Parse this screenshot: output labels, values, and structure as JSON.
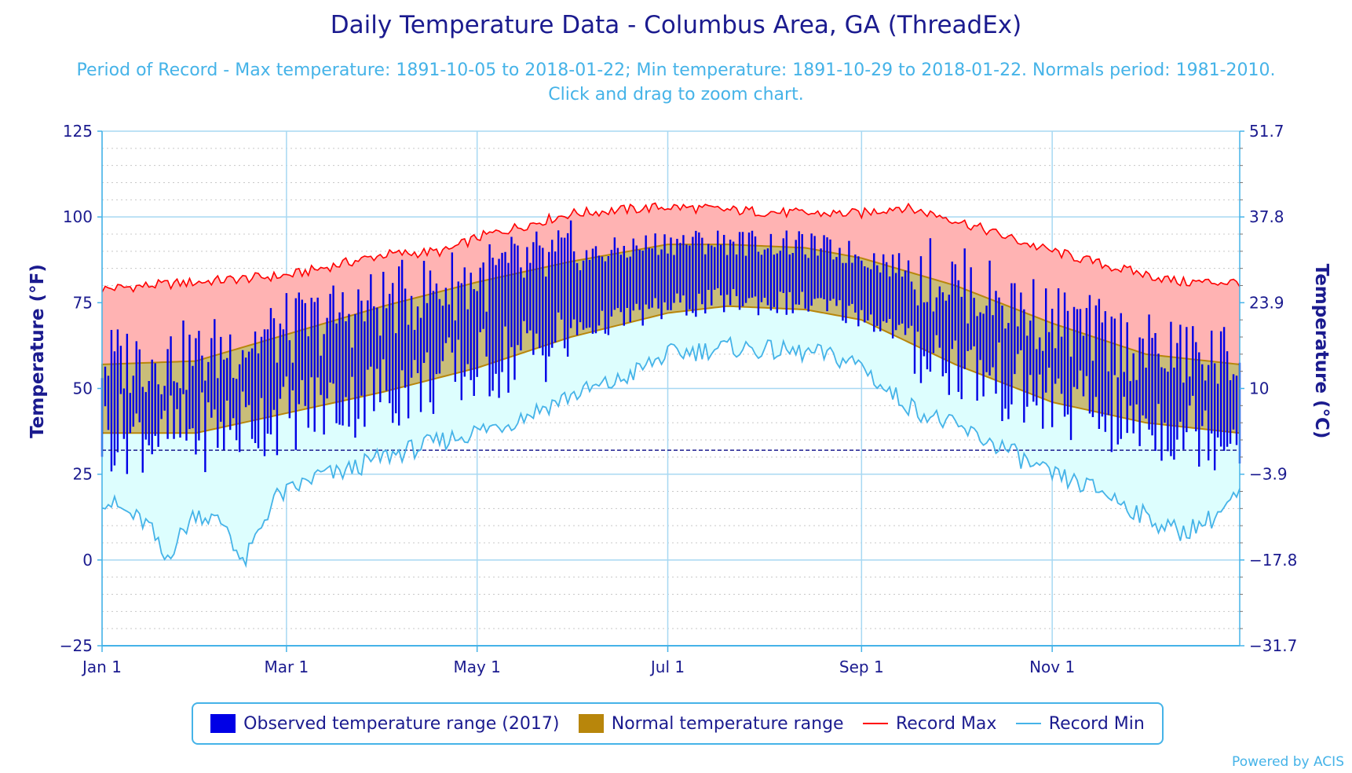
{
  "chart_data": {
    "type": "area",
    "title": "Daily Temperature Data - Columbus Area, GA (ThreadEx)",
    "subtitle": "Period of Record - Max temperature: 1891-10-05 to 2018-01-22; Min temperature: 1891-10-29 to 2018-01-22. Normals period: 1981-2010. Click and drag to zoom chart.",
    "ylabel_left": "Temperature (°F)",
    "ylabel_right": "Temperature (°C)",
    "ylim": [
      -25,
      125
    ],
    "yticks_left": [
      "125",
      "100",
      "75",
      "50",
      "25",
      "0",
      "−25"
    ],
    "yticks_right": [
      "51.7",
      "37.8",
      "23.9",
      "10",
      "−3.9",
      "−17.8",
      "−31.7"
    ],
    "xticks": [
      {
        "day": 0,
        "label": "Jan 1"
      },
      {
        "day": 59,
        "label": "Mar 1"
      },
      {
        "day": 120,
        "label": "May 1"
      },
      {
        "day": 181,
        "label": "Jul 1"
      },
      {
        "day": 243,
        "label": "Sep 1"
      },
      {
        "day": 304,
        "label": "Nov 1"
      }
    ],
    "freezing_line_f": 32,
    "grid": true,
    "legend_position": "bottom",
    "colors": {
      "observed": "#0000e6",
      "normal_fill": "#b8860b",
      "record_max": "#ff0000",
      "record_max_fill": "#ffb3b3",
      "record_min": "#45b3e8",
      "record_min_fill": "#ddfefe",
      "text": "#1b1b8f",
      "accent": "#45b3e8"
    },
    "series": [
      {
        "name": "Observed temperature range (2017)",
        "type": "range-bar",
        "note": "daily max/min bars for all 365 days"
      },
      {
        "name": "Normal temperature range",
        "type": "area-range",
        "high_keypoints": [
          [
            0,
            57
          ],
          [
            30,
            58
          ],
          [
            60,
            66
          ],
          [
            90,
            74
          ],
          [
            120,
            81
          ],
          [
            150,
            87
          ],
          [
            181,
            92
          ],
          [
            200,
            92
          ],
          [
            225,
            91
          ],
          [
            243,
            88
          ],
          [
            273,
            80
          ],
          [
            304,
            69
          ],
          [
            334,
            60
          ],
          [
            364,
            57
          ]
        ],
        "low_keypoints": [
          [
            0,
            37
          ],
          [
            30,
            37
          ],
          [
            60,
            43
          ],
          [
            90,
            49
          ],
          [
            120,
            56
          ],
          [
            150,
            65
          ],
          [
            181,
            72
          ],
          [
            200,
            74
          ],
          [
            225,
            73
          ],
          [
            243,
            70
          ],
          [
            273,
            57
          ],
          [
            304,
            46
          ],
          [
            334,
            40
          ],
          [
            364,
            37
          ]
        ]
      },
      {
        "name": "Record Max",
        "type": "line",
        "keypoints": [
          [
            0,
            79
          ],
          [
            30,
            81
          ],
          [
            60,
            83
          ],
          [
            90,
            89
          ],
          [
            110,
            90
          ],
          [
            120,
            94
          ],
          [
            150,
            101
          ],
          [
            181,
            103
          ],
          [
            200,
            102
          ],
          [
            225,
            101
          ],
          [
            243,
            101
          ],
          [
            255,
            103
          ],
          [
            270,
            100
          ],
          [
            280,
            97
          ],
          [
            300,
            91
          ],
          [
            325,
            85
          ],
          [
            345,
            81
          ],
          [
            364,
            81
          ]
        ]
      },
      {
        "name": "Record Min",
        "type": "line",
        "keypoints": [
          [
            0,
            18
          ],
          [
            15,
            10
          ],
          [
            20,
            0
          ],
          [
            30,
            14
          ],
          [
            40,
            10
          ],
          [
            45,
            -2
          ],
          [
            55,
            18
          ],
          [
            60,
            20
          ],
          [
            70,
            25
          ],
          [
            75,
            25
          ],
          [
            90,
            30
          ],
          [
            110,
            35
          ],
          [
            130,
            40
          ],
          [
            150,
            48
          ],
          [
            165,
            52
          ],
          [
            181,
            60
          ],
          [
            200,
            62
          ],
          [
            215,
            61
          ],
          [
            230,
            60
          ],
          [
            243,
            57
          ],
          [
            250,
            50
          ],
          [
            260,
            44
          ],
          [
            270,
            40
          ],
          [
            280,
            36
          ],
          [
            290,
            32
          ],
          [
            300,
            26
          ],
          [
            320,
            20
          ],
          [
            335,
            12
          ],
          [
            345,
            8
          ],
          [
            355,
            12
          ],
          [
            364,
            19
          ]
        ]
      }
    ]
  },
  "legend": {
    "observed_label": "Observed temperature range (2017)",
    "normal_label": "Normal temperature range",
    "record_max_label": "Record Max",
    "record_min_label": "Record Min"
  },
  "footer": {
    "powered_by": "Powered by ACIS"
  }
}
